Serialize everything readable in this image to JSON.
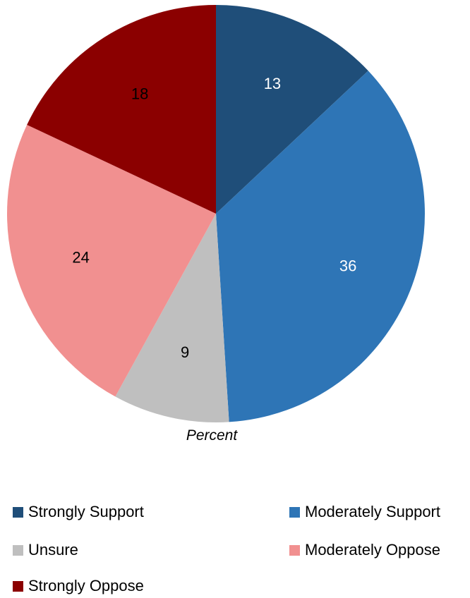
{
  "chart_data": {
    "type": "pie",
    "categories": [
      "Strongly Support",
      "Moderately Support",
      "Unsure",
      "Moderately Oppose",
      "Strongly Oppose"
    ],
    "values": [
      13,
      36,
      9,
      24,
      18
    ],
    "colors": [
      "#1F4E79",
      "#2E75B6",
      "#BFBFBF",
      "#F19090",
      "#8B0000"
    ],
    "label_colors": [
      "#FFFFFF",
      "#FFFFFF",
      "#000000",
      "#000000",
      "#000000"
    ],
    "caption": "Percent",
    "start_angle_deg": 0,
    "direction": "clockwise",
    "legend_placement": "bottom"
  }
}
